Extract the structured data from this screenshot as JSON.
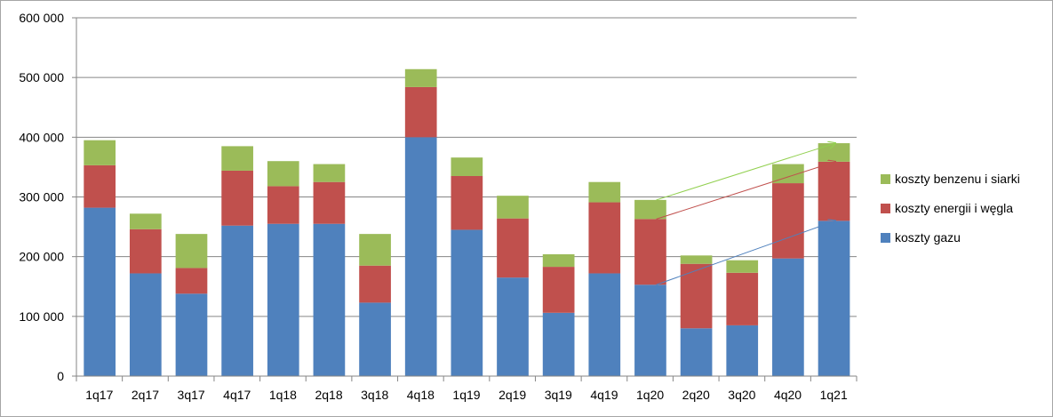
{
  "chart_data": {
    "type": "bar",
    "stacked": true,
    "categories": [
      "1q17",
      "2q17",
      "3q17",
      "4q17",
      "1q18",
      "2q18",
      "3q18",
      "4q18",
      "1q19",
      "2q19",
      "3q19",
      "4q19",
      "1q20",
      "2q20",
      "3q20",
      "4q20",
      "1q21"
    ],
    "series": [
      {
        "name": "koszty gazu",
        "color": "#4f81bd",
        "values": [
          282000,
          172000,
          138000,
          252000,
          255000,
          255000,
          123000,
          400000,
          245000,
          165000,
          106000,
          172000,
          153000,
          80000,
          85000,
          197000,
          260000
        ]
      },
      {
        "name": "koszty energii i węgla",
        "color": "#c0504d",
        "values": [
          71000,
          74000,
          43000,
          92000,
          63000,
          70000,
          62000,
          84000,
          90000,
          99000,
          77000,
          119000,
          110000,
          108000,
          88000,
          126000,
          99000
        ]
      },
      {
        "name": "koszty benzenu i siarki",
        "color": "#9bbb59",
        "values": [
          42000,
          26000,
          57000,
          41000,
          42000,
          30000,
          53000,
          30000,
          31000,
          38000,
          21000,
          34000,
          32000,
          14000,
          21000,
          32000,
          31000
        ]
      }
    ],
    "ylim": [
      0,
      600000
    ],
    "yticks": [
      "0",
      "100 000",
      "200 000",
      "300 000",
      "400 000",
      "500 000",
      "600 000"
    ],
    "grid": true,
    "legend": "right",
    "annotations": [
      {
        "type": "arrow",
        "series": "koszty benzenu i siarki",
        "from": "1q20",
        "to": "1q21",
        "color": "#92d050"
      },
      {
        "type": "arrow",
        "series": "koszty energii i węgla",
        "from": "1q20",
        "to": "1q21",
        "color": "#c0504d"
      },
      {
        "type": "arrow",
        "series": "koszty gazu",
        "from": "1q20",
        "to": "1q21",
        "color": "#4f81bd"
      }
    ]
  }
}
